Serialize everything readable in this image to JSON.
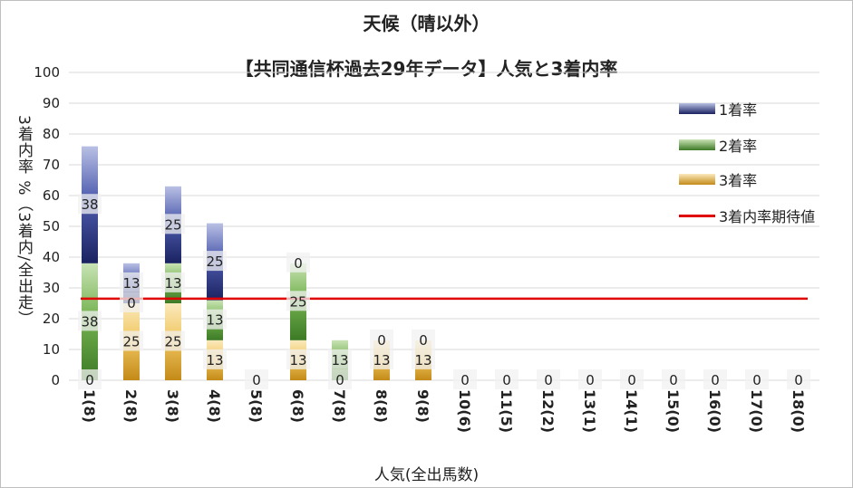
{
  "titles": {
    "line1": "天候（晴以外）",
    "line2": "【共同通信杯過去29年データ】人気と3着内率"
  },
  "axis": {
    "ylabel": "3着内率 %（3着内/全出走）",
    "xlabel": "人気(全出馬数)"
  },
  "legend": {
    "first": "1着率",
    "second": "2着率",
    "third": "3着率",
    "expected": "3着内率期待値"
  },
  "colors": {
    "first": "#3a4a9a",
    "second": "#5e9a3e",
    "third": "#d6a53a",
    "expected": "#e00000",
    "grid": "#d9d9d9"
  },
  "chart_data": {
    "type": "bar",
    "stacked": true,
    "title": "天候（晴以外） 【共同通信杯過去29年データ】人気と3着内率",
    "xlabel": "人気(全出馬数)",
    "ylabel": "3着内率 %（3着内/全出走）",
    "ylim": [
      0,
      100
    ],
    "yticks": [
      0,
      10,
      20,
      30,
      40,
      50,
      60,
      70,
      80,
      90,
      100
    ],
    "grid": true,
    "legend_position": "right",
    "categories": [
      "1(8)",
      "2(8)",
      "3(8)",
      "4(8)",
      "5(8)",
      "6(8)",
      "7(8)",
      "8(8)",
      "9(8)",
      "10(6)",
      "11(5)",
      "12(2)",
      "13(1)",
      "14(1)",
      "15(0)",
      "16(0)",
      "17(0)",
      "18(0)"
    ],
    "series": [
      {
        "name": "3着率",
        "values": [
          0,
          25,
          25,
          13,
          0,
          13,
          0,
          13,
          13,
          0,
          0,
          0,
          0,
          0,
          0,
          0,
          0,
          0
        ],
        "labels": [
          "0",
          "25",
          "25",
          "13",
          "",
          "13",
          "0",
          "13",
          "13",
          "",
          "",
          "",
          "",
          "",
          "",
          "",
          "",
          ""
        ]
      },
      {
        "name": "2着率",
        "values": [
          38,
          0,
          13,
          13,
          0,
          25,
          13,
          0,
          0,
          0,
          0,
          0,
          0,
          0,
          0,
          0,
          0,
          0
        ],
        "labels": [
          "38",
          "0",
          "13",
          "13",
          "",
          "25",
          "13",
          "0",
          "0",
          "",
          "",
          "",
          "",
          "",
          "",
          "",
          "",
          ""
        ]
      },
      {
        "name": "1着率",
        "values": [
          38,
          13,
          25,
          25,
          0,
          0,
          0,
          0,
          0,
          0,
          0,
          0,
          0,
          0,
          0,
          0,
          0,
          0
        ],
        "labels": [
          "38",
          "13",
          "25",
          "25",
          "0",
          "0",
          "",
          "",
          "",
          "0",
          "0",
          "0",
          "0",
          "0",
          "0",
          "0",
          "0",
          "0"
        ]
      }
    ],
    "reference_line": {
      "name": "3着内率期待値",
      "value": 26.5
    }
  }
}
